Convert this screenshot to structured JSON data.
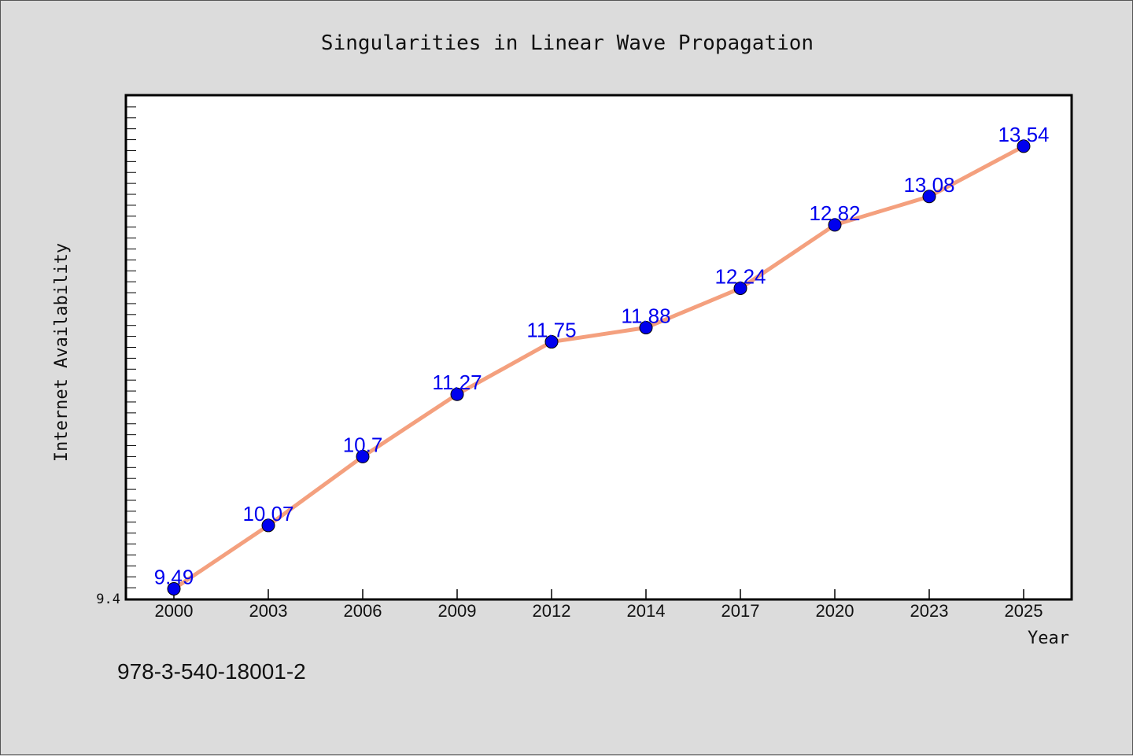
{
  "chart_data": {
    "type": "line",
    "title": "Singularities in Linear Wave Propagation",
    "xlabel": "Year",
    "ylabel": "Internet Availability",
    "categories": [
      "2000",
      "2003",
      "2006",
      "2009",
      "2012",
      "2014",
      "2017",
      "2020",
      "2023",
      "2025"
    ],
    "series": [
      {
        "values": [
          9.49,
          10.07,
          10.7,
          11.27,
          11.75,
          11.88,
          12.24,
          12.82,
          13.08,
          13.54
        ]
      }
    ],
    "ylim": [
      9.4,
      14.0
    ],
    "ytick_labels": [
      {
        "value": 9.4,
        "label": "9.4"
      }
    ],
    "line_color": "#f4a07e",
    "marker_color": "#0000ee",
    "label_color": "#0000ee",
    "grid": false,
    "legend": "none"
  },
  "footer_note": "978-3-540-18001-2"
}
